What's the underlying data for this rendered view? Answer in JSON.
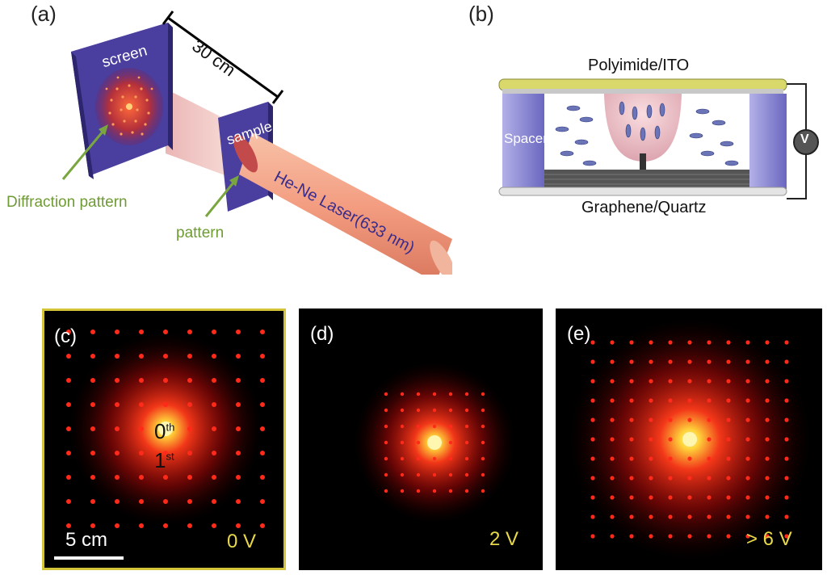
{
  "panel_a": {
    "label": "(a)",
    "distance": "30 cm",
    "screen": "screen",
    "sample": "sample",
    "laser": "He-Ne Laser(633 nm)",
    "diffraction_pattern": "Diffraction pattern",
    "pattern": "pattern"
  },
  "panel_b": {
    "label": "(b)",
    "top": "Polyimide/ITO",
    "bottom": "Graphene/Quartz",
    "spacer": "Spacer",
    "meter": "V"
  },
  "panel_c": {
    "label": "(c)",
    "zeroth_base": "0",
    "zeroth_sup": "th",
    "first_base": "1",
    "first_sup": "st",
    "scale": "5 cm",
    "voltage": "0 V"
  },
  "panel_d": {
    "label": "(d)",
    "voltage": "2 V"
  },
  "panel_e": {
    "label": "(e)",
    "voltage": "> 6 V"
  },
  "colors": {
    "screen": "#4a3f9e",
    "laser": "#f4a28a",
    "electrode": "#d9d86a",
    "voltage_text": "#e8d84a",
    "panel_c_border": "#d4c43a"
  }
}
